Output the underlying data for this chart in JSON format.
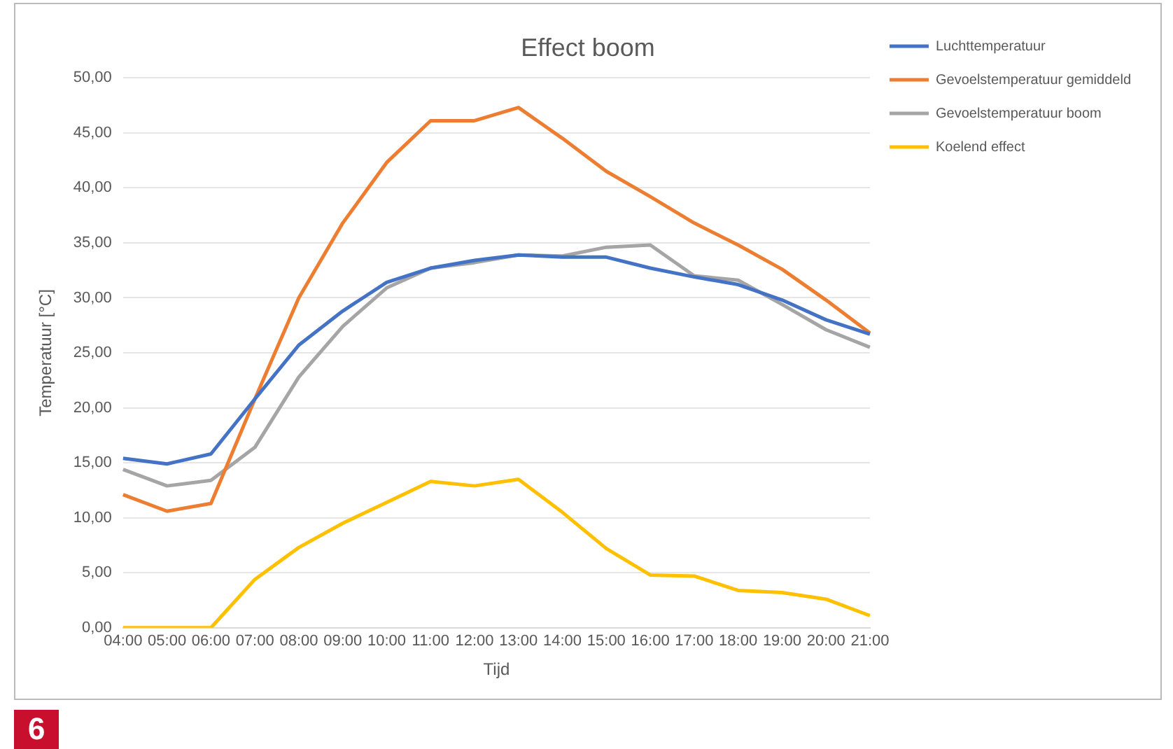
{
  "chart_data": {
    "type": "line",
    "title": "Effect boom",
    "xlabel": "Tijd",
    "ylabel": "Temperatuur [°C]",
    "categories": [
      "04:00",
      "05:00",
      "06:00",
      "07:00",
      "08:00",
      "09:00",
      "10:00",
      "11:00",
      "12:00",
      "13:00",
      "14:00",
      "15:00",
      "16:00",
      "17:00",
      "18:00",
      "19:00",
      "20:00",
      "21:00"
    ],
    "series": [
      {
        "name": "Luchttemperatuur",
        "color": "#4472c4",
        "values": [
          15.4,
          14.9,
          15.8,
          20.8,
          25.7,
          28.8,
          31.4,
          32.7,
          33.4,
          33.9,
          33.7,
          33.7,
          32.7,
          31.9,
          31.2,
          29.8,
          28.0,
          26.7
        ]
      },
      {
        "name": "Gevoelstemperatuur gemiddeld",
        "color": "#ed7d31",
        "values": [
          12.1,
          10.6,
          11.3,
          20.8,
          30.0,
          36.8,
          42.3,
          46.1,
          46.1,
          47.3,
          44.5,
          41.5,
          39.2,
          36.8,
          34.8,
          32.6,
          29.8,
          26.8
        ]
      },
      {
        "name": "Gevoelstemperatuur boom",
        "color": "#a5a5a5",
        "values": [
          14.4,
          12.9,
          13.4,
          16.4,
          22.8,
          27.4,
          30.9,
          32.7,
          33.2,
          33.9,
          33.8,
          34.6,
          34.8,
          32.0,
          31.6,
          29.4,
          27.1,
          25.5
        ]
      },
      {
        "name": "Koelend effect",
        "color": "#ffc000",
        "values": [
          0,
          0,
          0,
          4.4,
          7.3,
          9.5,
          11.4,
          13.3,
          12.9,
          13.5,
          10.5,
          7.2,
          4.8,
          4.7,
          3.4,
          3.2,
          2.6,
          1.1
        ]
      }
    ],
    "ylim": [
      0,
      50
    ],
    "yticks": [
      {
        "value": 0,
        "label": "0,00"
      },
      {
        "value": 5,
        "label": "5,00"
      },
      {
        "value": 10,
        "label": "10,00"
      },
      {
        "value": 15,
        "label": "15,00"
      },
      {
        "value": 20,
        "label": "20,00"
      },
      {
        "value": 25,
        "label": "25,00"
      },
      {
        "value": 30,
        "label": "30,00"
      },
      {
        "value": 35,
        "label": "35,00"
      },
      {
        "value": 40,
        "label": "40,00"
      },
      {
        "value": 45,
        "label": "45,00"
      },
      {
        "value": 50,
        "label": "50,00"
      }
    ],
    "grid": "y",
    "legend": "top right",
    "marker": "none",
    "line_style": "solid",
    "annotations": [
      "6"
    ]
  }
}
